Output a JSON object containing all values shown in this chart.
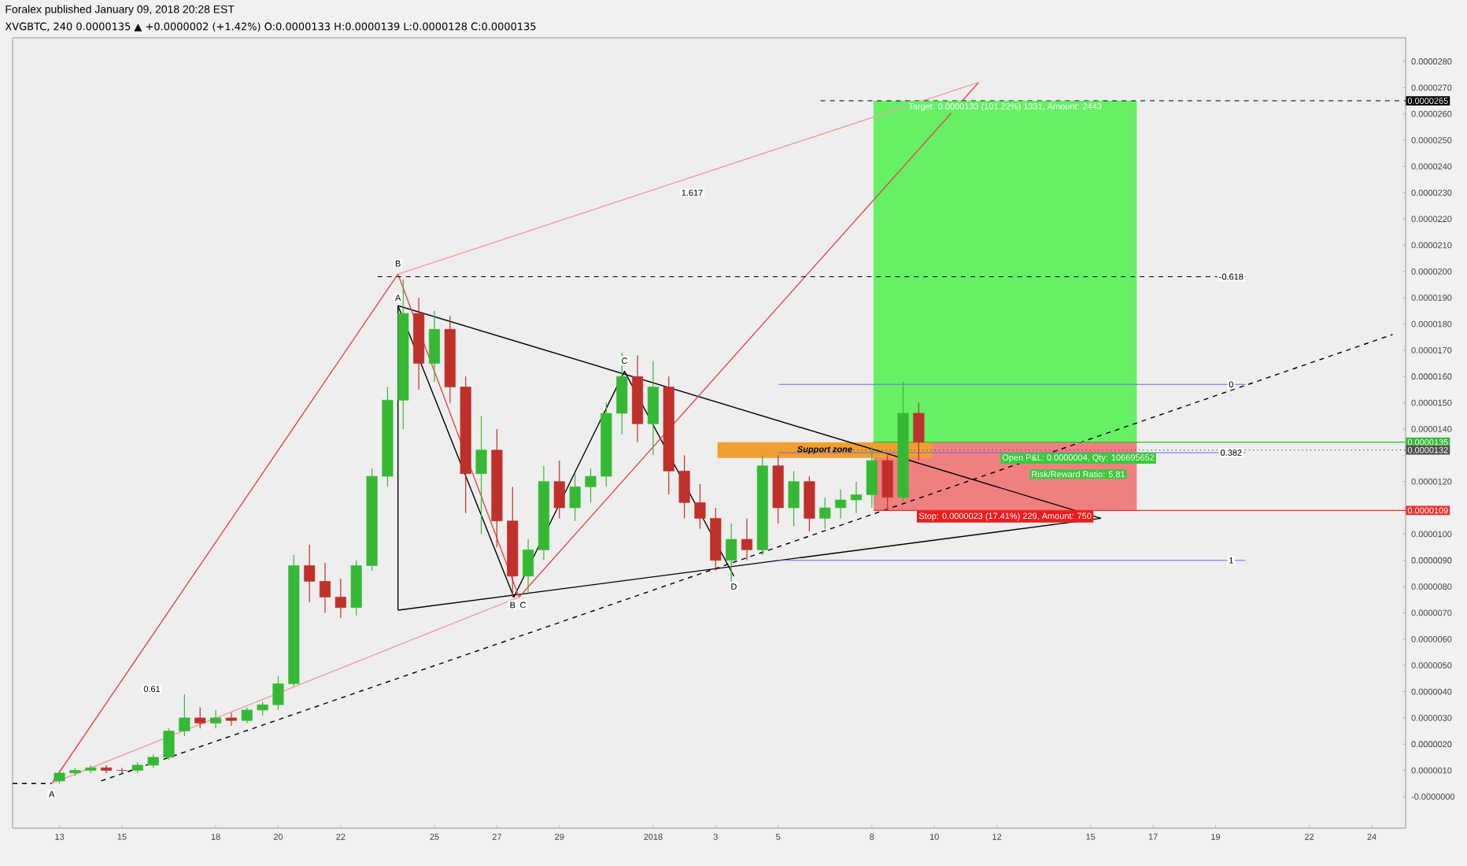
{
  "chart_data": {
    "type": "candlestick",
    "title": "Foralex published January 09, 2018 20:28 EST",
    "subtitle": "XVGBTC, 240 0.0000135 ▲ +0.0000002 (+1.42%) O:0.0000133 H:0.0000139 L:0.0000128 C:0.0000135",
    "x": [
      "2017-12-13T00:00",
      "2017-12-13T12:00",
      "2017-12-14T00:00",
      "2017-12-14T12:00",
      "2017-12-15T00:00",
      "2017-12-15T12:00",
      "2017-12-16T00:00",
      "2017-12-16T12:00",
      "2017-12-17T00:00",
      "2017-12-17T12:00",
      "2017-12-18T00:00",
      "2017-12-18T12:00",
      "2017-12-19T00:00",
      "2017-12-19T12:00",
      "2017-12-20T00:00",
      "2017-12-20T12:00",
      "2017-12-21T00:00",
      "2017-12-21T12:00",
      "2017-12-22T00:00",
      "2017-12-22T12:00",
      "2017-12-23T00:00",
      "2017-12-23T12:00",
      "2017-12-24T00:00",
      "2017-12-24T12:00",
      "2017-12-25T00:00",
      "2017-12-25T12:00",
      "2017-12-26T00:00",
      "2017-12-26T12:00",
      "2017-12-27T00:00",
      "2017-12-27T12:00",
      "2017-12-28T00:00",
      "2017-12-28T12:00",
      "2017-12-29T00:00",
      "2017-12-29T12:00",
      "2017-12-30T00:00",
      "2017-12-30T12:00",
      "2017-12-31T00:00",
      "2017-12-31T12:00",
      "2018-01-01T00:00",
      "2018-01-01T12:00",
      "2018-01-02T00:00",
      "2018-01-02T12:00",
      "2018-01-03T00:00",
      "2018-01-03T12:00",
      "2018-01-04T00:00",
      "2018-01-04T12:00",
      "2018-01-05T00:00",
      "2018-01-05T12:00",
      "2018-01-06T00:00",
      "2018-01-06T12:00",
      "2018-01-07T00:00",
      "2018-01-07T12:00",
      "2018-01-08T00:00",
      "2018-01-08T12:00",
      "2018-01-09T00:00",
      "2018-01-09T12:00"
    ],
    "ohlc": [
      [
        6e-07,
        1e-06,
        5e-07,
        9e-07
      ],
      [
        9e-07,
        1.1e-06,
        8e-07,
        1e-06
      ],
      [
        1e-06,
        1.2e-06,
        9e-07,
        1.1e-06
      ],
      [
        1.1e-06,
        1.2e-06,
        9e-07,
        1e-06
      ],
      [
        1e-06,
        1.1e-06,
        9e-07,
        1e-06
      ],
      [
        1e-06,
        1.3e-06,
        9e-07,
        1.2e-06
      ],
      [
        1.2e-06,
        1.6e-06,
        1.1e-06,
        1.5e-06
      ],
      [
        1.5e-06,
        2.6e-06,
        1.4e-06,
        2.5e-06
      ],
      [
        2.5e-06,
        3.9e-06,
        2.3e-06,
        3e-06
      ],
      [
        3e-06,
        3.4e-06,
        2.6e-06,
        2.8e-06
      ],
      [
        2.8e-06,
        3.3e-06,
        2.6e-06,
        3e-06
      ],
      [
        3e-06,
        3.2e-06,
        2.7e-06,
        2.9e-06
      ],
      [
        2.9e-06,
        3.4e-06,
        2.8e-06,
        3.3e-06
      ],
      [
        3.3e-06,
        3.6e-06,
        3.1e-06,
        3.5e-06
      ],
      [
        3.5e-06,
        4.6e-06,
        3.3e-06,
        4.3e-06
      ],
      [
        4.3e-06,
        9.2e-06,
        4.2e-06,
        8.8e-06
      ],
      [
        8.8e-06,
        9.6e-06,
        7.4e-06,
        8.2e-06
      ],
      [
        8.2e-06,
        8.9e-06,
        7e-06,
        7.6e-06
      ],
      [
        7.6e-06,
        8.3e-06,
        6.8e-06,
        7.2e-06
      ],
      [
        7.2e-06,
        9e-06,
        6.9e-06,
        8.8e-06
      ],
      [
        8.8e-06,
        1.25e-05,
        8.6e-06,
        1.22e-05
      ],
      [
        1.22e-05,
        1.56e-05,
        1.18e-05,
        1.51e-05
      ],
      [
        1.51e-05,
        1.97e-05,
        1.4e-05,
        1.84e-05
      ],
      [
        1.84e-05,
        1.9e-05,
        1.55e-05,
        1.65e-05
      ],
      [
        1.65e-05,
        1.85e-05,
        1.58e-05,
        1.78e-05
      ],
      [
        1.78e-05,
        1.83e-05,
        1.5e-05,
        1.56e-05
      ],
      [
        1.56e-05,
        1.6e-05,
        1.08e-05,
        1.23e-05
      ],
      [
        1.23e-05,
        1.45e-05,
        1e-05,
        1.32e-05
      ],
      [
        1.32e-05,
        1.4e-05,
        9.5e-06,
        1.05e-05
      ],
      [
        1.05e-05,
        1.18e-05,
        7.6e-06,
        8.4e-06
      ],
      [
        8.4e-06,
        9.8e-06,
        7.8e-06,
        9.4e-06
      ],
      [
        9.4e-06,
        1.26e-05,
        9e-06,
        1.2e-05
      ],
      [
        1.2e-05,
        1.28e-05,
        1.06e-05,
        1.1e-05
      ],
      [
        1.1e-05,
        1.23e-05,
        1.05e-05,
        1.18e-05
      ],
      [
        1.18e-05,
        1.25e-05,
        1.12e-05,
        1.22e-05
      ],
      [
        1.22e-05,
        1.5e-05,
        1.18e-05,
        1.46e-05
      ],
      [
        1.46e-05,
        1.69e-05,
        1.38e-05,
        1.6e-05
      ],
      [
        1.6e-05,
        1.68e-05,
        1.35e-05,
        1.42e-05
      ],
      [
        1.42e-05,
        1.66e-05,
        1.3e-05,
        1.56e-05
      ],
      [
        1.56e-05,
        1.6e-05,
        1.15e-05,
        1.24e-05
      ],
      [
        1.24e-05,
        1.3e-05,
        1.06e-05,
        1.12e-05
      ],
      [
        1.12e-05,
        1.19e-05,
        1.02e-05,
        1.06e-05
      ],
      [
        1.06e-05,
        1.1e-05,
        8.6e-06,
        9e-06
      ],
      [
        9e-06,
        1.04e-05,
        8.2e-06,
        9.8e-06
      ],
      [
        9.8e-06,
        1.06e-05,
        9e-06,
        9.4e-06
      ],
      [
        9.4e-06,
        1.3e-05,
        9.2e-06,
        1.26e-05
      ],
      [
        1.26e-05,
        1.3e-05,
        1.04e-05,
        1.1e-05
      ],
      [
        1.1e-05,
        1.24e-05,
        1.03e-05,
        1.2e-05
      ],
      [
        1.2e-05,
        1.22e-05,
        1.01e-05,
        1.06e-05
      ],
      [
        1.06e-05,
        1.14e-05,
        1.02e-05,
        1.1e-05
      ],
      [
        1.1e-05,
        1.17e-05,
        1.06e-05,
        1.13e-05
      ],
      [
        1.13e-05,
        1.2e-05,
        1.08e-05,
        1.15e-05
      ],
      [
        1.15e-05,
        1.33e-05,
        1.1e-05,
        1.28e-05
      ],
      [
        1.28e-05,
        1.3e-05,
        1.09e-05,
        1.14e-05
      ],
      [
        1.14e-05,
        1.58e-05,
        1.12e-05,
        1.46e-05
      ],
      [
        1.46e-05,
        1.5e-05,
        1.28e-05,
        1.35e-05
      ]
    ],
    "colors": [
      "#35b935",
      "#35b935",
      "#35b935",
      "#c0302a",
      "#c0302a",
      "#35b935",
      "#35b935",
      "#35b935",
      "#35b935",
      "#c0302a",
      "#35b935",
      "#c0302a",
      "#35b935",
      "#35b935",
      "#35b935",
      "#35b935",
      "#c0302a",
      "#c0302a",
      "#c0302a",
      "#35b935",
      "#35b935",
      "#35b935",
      "#35b935",
      "#c0302a",
      "#35b935",
      "#c0302a",
      "#c0302a",
      "#35b935",
      "#c0302a",
      "#c0302a",
      "#35b935",
      "#35b935",
      "#c0302a",
      "#35b935",
      "#35b935",
      "#35b935",
      "#35b935",
      "#c0302a",
      "#35b935",
      "#c0302a",
      "#c0302a",
      "#c0302a",
      "#c0302a",
      "#35b935",
      "#c0302a",
      "#35b935",
      "#c0302a",
      "#35b935",
      "#c0302a",
      "#35b935",
      "#35b935",
      "#35b935",
      "#35b935",
      "#c0302a",
      "#35b935",
      "#c0302a"
    ],
    "series": [
      {
        "type": "line",
        "x": [
          "2017-12-11T12:00",
          "2017-12-12T18:00"
        ],
        "values": [
          5e-07,
          5e-07
        ],
        "color": "#000000",
        "line_style": "dashed"
      },
      {
        "type": "line",
        "x": [
          "2017-12-14T08:00",
          "2018-01-24T16:00"
        ],
        "values": [
          6e-07,
          1.76e-05
        ],
        "color": "#000000",
        "line_style": "dashed"
      },
      {
        "type": "line",
        "x": [
          "2017-12-23T20:00",
          "2018-01-15T08:00"
        ],
        "values": [
          1.87e-05,
          1.06e-05
        ],
        "color": "#000000"
      },
      {
        "type": "line",
        "x": [
          "2017-12-23T20:00",
          "2018-01-15T08:00"
        ],
        "values": [
          7.1e-06,
          1.06e-05
        ],
        "color": "#000000"
      },
      {
        "type": "line",
        "x": [
          "2017-12-23T20:00",
          "2017-12-23T20:00"
        ],
        "values": [
          7.1e-06,
          1.87e-05
        ],
        "color": "#000000"
      },
      {
        "type": "line",
        "x": [
          "2017-12-23T20:00",
          "2017-12-27T13:00",
          "2017-12-31T02:00",
          "2018-01-03T14:00"
        ],
        "values": [
          1.87e-05,
          7.6e-06,
          1.62e-05,
          8.4e-06
        ],
        "color": "#000000"
      },
      {
        "type": "line",
        "x": [
          "2017-12-12T18:00",
          "2017-12-23T20:00",
          "2017-12-27T17:00",
          "2018-01-11T10:00"
        ],
        "values": [
          5e-07,
          1.99e-05,
          7.6e-06,
          2.72e-05
        ],
        "color": "#e84848"
      },
      {
        "type": "line",
        "x": [
          "2017-12-12T18:00",
          "2017-12-27T17:00"
        ],
        "values": [
          5e-07,
          7.6e-06
        ],
        "color": "#f0a0a0"
      },
      {
        "type": "line",
        "x": [
          "2017-12-23T20:00",
          "2018-01-11T10:00"
        ],
        "values": [
          1.99e-05,
          2.72e-05
        ],
        "color": "#f0a0a0"
      }
    ],
    "ref_lines": [
      {
        "axis": "y",
        "value": 1.98e-05,
        "line_style": "dashed",
        "color": "#000000"
      },
      {
        "axis": "y",
        "value": 1.57e-05,
        "color": "#6a6ae0"
      },
      {
        "axis": "y",
        "value": 1.31e-05,
        "color": "#6a6ae0"
      },
      {
        "axis": "y",
        "value": 9e-06,
        "color": "#6a6ae0"
      },
      {
        "axis": "y",
        "value": 2.65e-05,
        "label": "0.0000265",
        "line_style": "dashed",
        "color": "#000000"
      },
      {
        "axis": "y",
        "value": 1.35e-05,
        "label": "0.0000135",
        "color": "#35b935"
      },
      {
        "axis": "y",
        "value": 1.32e-05,
        "label": "0.0000132",
        "line_style": "dotted",
        "color": "#505050"
      },
      {
        "axis": "y",
        "value": 1.09e-05,
        "label": "0.0000109",
        "color": "#e83030"
      }
    ],
    "bands": [
      {
        "axis": "y",
        "from": 1.35e-05,
        "to": 2.65e-05,
        "label": "Target: 0.0000133 (101.22%) 1331, Amount: 2443",
        "color": "#66f066"
      },
      {
        "axis": "y",
        "from": 1.09e-05,
        "to": 1.35e-05,
        "label": "Stop: 0.0000023 (17.41%) 229, Amount: 750",
        "color": "#f08080"
      },
      {
        "axis": "y",
        "from": 1.29e-05,
        "to": 1.35e-05,
        "label": "Support zone",
        "color": "#f0a030"
      }
    ],
    "annotations": [
      {
        "text": "A",
        "x": "2017-12-23T20:00",
        "y": 1.9e-05
      },
      {
        "text": "B",
        "x": "2017-12-27T12:00",
        "y": 7.3e-06
      },
      {
        "text": "C",
        "x": "2017-12-31T02:00",
        "y": 1.66e-05
      },
      {
        "text": "D",
        "x": "2018-01-03T14:00",
        "y": 8e-06
      },
      {
        "text": "A",
        "x": "2017-12-12T18:00",
        "y": 1e-07
      },
      {
        "text": "B",
        "x": "2017-12-23T20:00",
        "y": 2.03e-05
      },
      {
        "text": "C",
        "x": "2017-12-27T20:00",
        "y": 7.3e-06
      },
      {
        "text": "1.617",
        "x": "2018-01-02T06:00",
        "y": 2.3e-05
      },
      {
        "text": "0.61",
        "x": "2017-12-15T23:00",
        "y": 4.1e-06
      },
      {
        "text": "-0.618",
        "x": "2018-01-19T12:00",
        "y": 1.98e-05
      },
      {
        "text": "0",
        "x": "2018-01-19T12:00",
        "y": 1.57e-05
      },
      {
        "text": "0.382",
        "x": "2018-01-19T12:00",
        "y": 1.31e-05
      },
      {
        "text": "1",
        "x": "2018-01-19T12:00",
        "y": 9e-06
      },
      "Open P&L: 0.0000004, Qty: 106695652",
      "Risk/Reward Ratio: 5.81"
    ],
    "xlim": [
      "2017-12-11T12:00",
      "2018-01-25T02:00"
    ],
    "xticks": [
      {
        "value": "2017-12-13",
        "label": "13"
      },
      {
        "value": "2017-12-15",
        "label": "15"
      },
      {
        "value": "2017-12-18",
        "label": "18"
      },
      {
        "value": "2017-12-20",
        "label": "20"
      },
      {
        "value": "2017-12-22",
        "label": "22"
      },
      {
        "value": "2017-12-25",
        "label": "25"
      },
      {
        "value": "2017-12-27",
        "label": "27"
      },
      {
        "value": "2017-12-29",
        "label": "29"
      },
      {
        "value": "2018-01-01",
        "label": "2018"
      },
      {
        "value": "2018-01-03",
        "label": "3"
      },
      {
        "value": "2018-01-05",
        "label": "5"
      },
      {
        "value": "2018-01-08",
        "label": "8"
      },
      {
        "value": "2018-01-10",
        "label": "10"
      },
      {
        "value": "2018-01-12",
        "label": "12"
      },
      {
        "value": "2018-01-15",
        "label": "15"
      },
      {
        "value": "2018-01-17",
        "label": "17"
      },
      {
        "value": "2018-01-19",
        "label": "19"
      },
      {
        "value": "2018-01-22",
        "label": "22"
      },
      {
        "value": "2018-01-24",
        "label": "24"
      }
    ],
    "ylim": [
      -1.2e-06,
      2.89e-05
    ],
    "yticks": [
      {
        "value": 0,
        "label": "-0.0000000"
      },
      {
        "value": 1e-06,
        "label": "0.0000010"
      },
      {
        "value": 2e-06,
        "label": "0.0000020"
      },
      {
        "value": 3e-06,
        "label": "0.0000030"
      },
      {
        "value": 4e-06,
        "label": "0.0000040"
      },
      {
        "value": 5e-06,
        "label": "0.0000050"
      },
      {
        "value": 6e-06,
        "label": "0.0000060"
      },
      {
        "value": 7e-06,
        "label": "0.0000070"
      },
      {
        "value": 8e-06,
        "label": "0.0000080"
      },
      {
        "value": 9e-06,
        "label": "0.0000090"
      },
      {
        "value": 1e-05,
        "label": "0.0000100"
      },
      {
        "value": 1.1e-05,
        "label": null
      },
      {
        "value": 1.2e-05,
        "label": "0.0000120"
      },
      {
        "value": 1.3e-05,
        "label": null
      },
      {
        "value": 1.4e-05,
        "label": "0.0000140"
      },
      {
        "value": 1.5e-05,
        "label": "0.0000150"
      },
      {
        "value": 1.6e-05,
        "label": "0.0000160"
      },
      {
        "value": 1.7e-05,
        "label": "0.0000170"
      },
      {
        "value": 1.8e-05,
        "label": "0.0000180"
      },
      {
        "value": 1.9e-05,
        "label": "0.0000190"
      },
      {
        "value": 2e-05,
        "label": "0.0000200"
      },
      {
        "value": 2.1e-05,
        "label": "0.0000210"
      },
      {
        "value": 2.2e-05,
        "label": "0.0000220"
      },
      {
        "value": 2.3e-05,
        "label": "0.0000230"
      },
      {
        "value": 2.4e-05,
        "label": "0.0000240"
      },
      {
        "value": 2.5e-05,
        "label": "0.0000250"
      },
      {
        "value": 2.6e-05,
        "label": "0.0000260"
      },
      {
        "value": 2.7e-05,
        "label": "0.0000270"
      },
      {
        "value": 2.8e-05,
        "label": "0.0000280"
      }
    ]
  }
}
